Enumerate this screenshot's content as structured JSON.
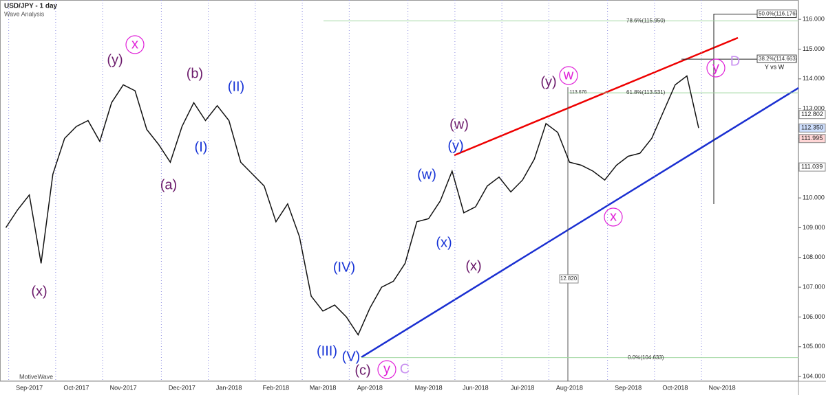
{
  "chart_data": {
    "type": "line",
    "title": "USD/JPY - 1 day",
    "subtitle": "Wave Analysis",
    "footer": "MotiveWave",
    "categories": [
      null,
      null,
      "Sep-2017",
      null,
      null,
      null,
      "Oct-2017",
      null,
      null,
      null,
      "Nov-2017",
      null,
      null,
      null,
      null,
      "Dec-2017",
      null,
      null,
      null,
      "Jan-2018",
      null,
      null,
      null,
      "Feb-2018",
      null,
      null,
      null,
      "Mar-2018",
      null,
      null,
      null,
      "Apr-2018",
      null,
      null,
      null,
      null,
      "May-2018",
      null,
      null,
      null,
      "Jun-2018",
      null,
      null,
      null,
      "Jul-2018",
      null,
      null,
      null,
      "Aug-2018",
      null,
      null,
      null,
      null,
      "Sep-2018",
      null,
      null,
      null,
      "Oct-2018",
      null,
      null,
      null,
      "Nov-2018",
      null,
      null,
      null,
      null,
      null,
      null
    ],
    "series": [
      {
        "name": "USD/JPY",
        "color": "#111111",
        "values": [
          109.0,
          109.6,
          110.1,
          107.8,
          110.8,
          112.0,
          112.4,
          112.6,
          111.9,
          113.2,
          113.8,
          113.6,
          112.3,
          111.8,
          111.2,
          112.4,
          113.2,
          112.6,
          113.1,
          112.6,
          111.2,
          110.8,
          110.4,
          109.2,
          109.8,
          108.7,
          106.7,
          106.2,
          106.4,
          106.0,
          105.4,
          106.3,
          107.0,
          107.2,
          107.8,
          109.2,
          109.3,
          109.9,
          110.9,
          109.5,
          109.7,
          110.4,
          110.7,
          110.2,
          110.6,
          111.3,
          112.5,
          112.2,
          111.2,
          111.1,
          110.9,
          110.6,
          111.1,
          111.4,
          111.5,
          112.0,
          112.9,
          113.8,
          114.1,
          112.35,
          null,
          null,
          null,
          null,
          null,
          null,
          null,
          null
        ]
      }
    ],
    "ylim": [
      103.84,
      116.65
    ],
    "yticks": [
      {
        "value": 104,
        "label": "104.000"
      },
      {
        "value": 105,
        "label": "105.000"
      },
      {
        "value": 106,
        "label": "106.000"
      },
      {
        "value": 107,
        "label": "107.000"
      },
      {
        "value": 108,
        "label": "108.000"
      },
      {
        "value": 109,
        "label": "109.000"
      },
      {
        "value": 110,
        "label": "110.000"
      },
      {
        "value": 111,
        "label": "111.000"
      },
      {
        "value": 112,
        "label": "112.000"
      },
      {
        "value": 113,
        "label": "113.000"
      },
      {
        "value": 114,
        "label": "114.000"
      },
      {
        "value": 115,
        "label": "115.000"
      },
      {
        "value": 116,
        "label": "116.000"
      }
    ],
    "price_tags": [
      {
        "value": 112.802,
        "label": "112.802"
      },
      {
        "value": 112.35,
        "label": "112.350"
      },
      {
        "value": 111.995,
        "label": "111.995"
      },
      {
        "value": 111.039,
        "label": "111.039"
      }
    ],
    "levels": [
      {
        "value": 115.95,
        "label": "78.6%(115.950)"
      },
      {
        "value": 113.531,
        "label": "61.8%(113.531)"
      },
      {
        "value": 104.633,
        "label": "0.0%(104.633)"
      },
      {
        "value": 116.176,
        "label": "50.0%(116.176)"
      },
      {
        "value": 114.663,
        "label": "38.2%(114.663)"
      }
    ],
    "annotations": [
      "(x)",
      "(y)",
      "x",
      "(b)",
      "(II)",
      "(I)",
      "(a)",
      "(IV)",
      "(III)",
      "(V)",
      "(c)",
      "y",
      "C",
      "(w)",
      "(x)",
      "(y)",
      "(w)",
      "(x)",
      "(y)",
      "w",
      "x",
      "y",
      "D",
      "Y vs W",
      "113.676",
      "12.820"
    ]
  }
}
